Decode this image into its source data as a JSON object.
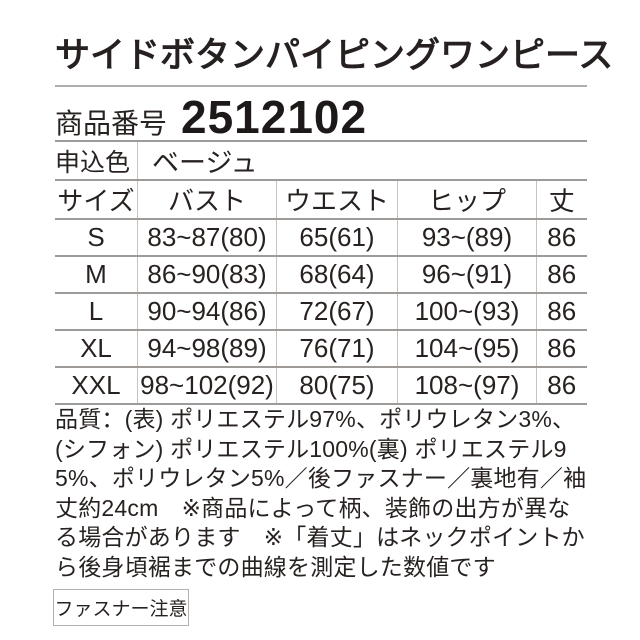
{
  "header": {
    "title": "サイドボタンパイピングワンピース",
    "product_number_label": "商品番号",
    "product_number": "2512102"
  },
  "order_color": {
    "label": "申込色",
    "value": "ベージュ"
  },
  "size_table": {
    "columns": [
      "サイズ",
      "バスト",
      "ウエスト",
      "ヒップ",
      "丈"
    ],
    "rows": [
      {
        "size": "S",
        "bust": "83~87(80)",
        "waist": "65(61)",
        "hip": "93~(89)",
        "length": "86"
      },
      {
        "size": "M",
        "bust": "86~90(83)",
        "waist": "68(64)",
        "hip": "96~(91)",
        "length": "86"
      },
      {
        "size": "L",
        "bust": "90~94(86)",
        "waist": "72(67)",
        "hip": "100~(93)",
        "length": "86"
      },
      {
        "size": "XL",
        "bust": "94~98(89)",
        "waist": "76(71)",
        "hip": "104~(95)",
        "length": "86"
      },
      {
        "size": "XXL",
        "bust": "98~102(92)",
        "waist": "80(75)",
        "hip": "108~(97)",
        "length": "86"
      }
    ]
  },
  "quality_note": "品質：(表) ポリエステル97%、ポリウレタン3%、(シフォン) ポリエステル100%(裏) ポリエステル95%、ポリウレタン5%／後ファスナー／裏地有／袖丈約24cm　※商品によって柄、装飾の出方が異なる場合があります　※「着丈」はネックポイントから後身頃裾までの曲線を測定した数値です",
  "caution_badge": "ファスナー注意",
  "colors": {
    "text": "#272220",
    "rule_horizontal": "#9e9a98",
    "rule_vertical": "#c6c3c1",
    "badge_border": "#b3b0ae",
    "background": "#ffffff"
  }
}
